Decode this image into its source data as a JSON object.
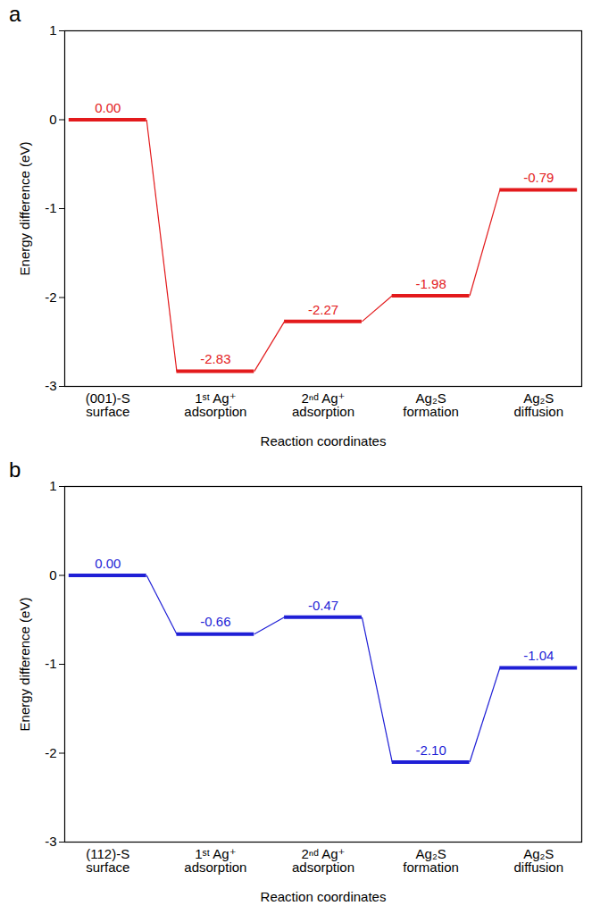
{
  "chart_data": [
    {
      "panel": "a",
      "type": "line",
      "line_style": "solid",
      "color": "#e31a1c",
      "categories": [
        "(001)-S surface",
        "1ˢᵗ Ag⁺ adsorption",
        "2ⁿᵈ Ag⁺ adsorption",
        "Ag₂S formation",
        "Ag₂S diffusion"
      ],
      "values": [
        0.0,
        -2.83,
        -2.27,
        -1.98,
        -0.79
      ],
      "value_labels": [
        "0.00",
        "-2.83",
        "-2.27",
        "-1.98",
        "-0.79"
      ],
      "data_labels": true,
      "grid": false,
      "x_label": "Reaction coordinates",
      "y_label": "Energy difference (eV)",
      "ylim": [
        -3,
        1
      ],
      "yticks": [
        -3,
        -2,
        -1,
        0,
        1
      ]
    },
    {
      "panel": "b",
      "type": "line",
      "line_style": "solid",
      "color": "#1f1fd6",
      "categories": [
        "(112)-S surface",
        "1ˢᵗ Ag⁺ adsorption",
        "2ⁿᵈ Ag⁺ adsorption",
        "Ag₂S formation",
        "Ag₂S diffusion"
      ],
      "values": [
        0.0,
        -0.66,
        -0.47,
        -2.1,
        -1.04
      ],
      "value_labels": [
        "0.00",
        "-0.66",
        "-0.47",
        "-2.10",
        "-1.04"
      ],
      "data_labels": true,
      "grid": false,
      "x_label": "Reaction coordinates",
      "y_label": "Energy difference (eV)",
      "ylim": [
        -3,
        1
      ],
      "yticks": [
        -3,
        -2,
        -1,
        0,
        1
      ]
    }
  ]
}
